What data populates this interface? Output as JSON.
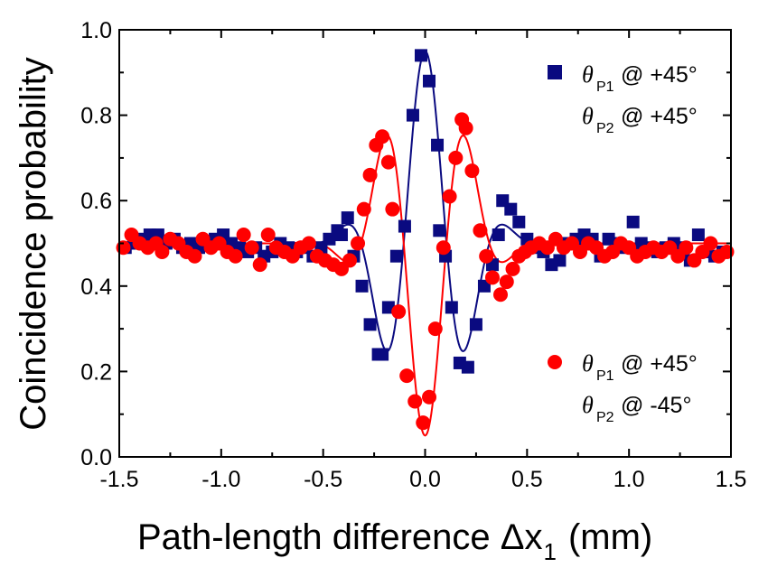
{
  "chart_data": {
    "type": "scatter",
    "title": "",
    "xlabel": "Path-length difference Δx",
    "xlabel_sub": "1",
    "xlabel_unit": "(mm)",
    "ylabel": "Coincidence probability",
    "xlim": [
      -1.5,
      1.5
    ],
    "ylim": [
      0.0,
      1.0
    ],
    "xticks": [
      "-1.5",
      "-1.0",
      "-0.5",
      "0.0",
      "0.5",
      "1.0",
      "1.5"
    ],
    "xtick_values": [
      -1.5,
      -1.0,
      -0.5,
      0.0,
      0.5,
      1.0,
      1.5
    ],
    "yticks": [
      "0.0",
      "0.2",
      "0.4",
      "0.6",
      "0.8",
      "1.0"
    ],
    "ytick_values": [
      0.0,
      0.2,
      0.4,
      0.6,
      0.8,
      1.0
    ],
    "grid": false,
    "legend_placement": "right",
    "series": [
      {
        "name": "θP1 @ +45°, θP2 @ +45°",
        "marker": "square",
        "color": "#0a0a80",
        "legend": {
          "line1_prefix": "θ",
          "line1_sub": "P1",
          "line1_suffix": "@ +45°",
          "line2_prefix": "θ",
          "line2_sub": "P2",
          "line2_suffix": "@ +45°"
        },
        "points": [
          [
            -1.47,
            0.49
          ],
          [
            -1.43,
            0.5
          ],
          [
            -1.39,
            0.51
          ],
          [
            -1.35,
            0.52
          ],
          [
            -1.31,
            0.52
          ],
          [
            -1.27,
            0.5
          ],
          [
            -1.23,
            0.51
          ],
          [
            -1.19,
            0.49
          ],
          [
            -1.15,
            0.5
          ],
          [
            -1.11,
            0.49
          ],
          [
            -1.07,
            0.5
          ],
          [
            -1.03,
            0.51
          ],
          [
            -0.99,
            0.52
          ],
          [
            -0.95,
            0.5
          ],
          [
            -0.91,
            0.49
          ],
          [
            -0.87,
            0.48
          ],
          [
            -0.83,
            0.49
          ],
          [
            -0.79,
            0.47
          ],
          [
            -0.75,
            0.48
          ],
          [
            -0.71,
            0.5
          ],
          [
            -0.67,
            0.49
          ],
          [
            -0.63,
            0.48
          ],
          [
            -0.59,
            0.49
          ],
          [
            -0.55,
            0.47
          ],
          [
            -0.51,
            0.49
          ],
          [
            -0.47,
            0.51
          ],
          [
            -0.43,
            0.53
          ],
          [
            -0.41,
            0.52
          ],
          [
            -0.38,
            0.56
          ],
          [
            -0.35,
            0.47
          ],
          [
            -0.31,
            0.4
          ],
          [
            -0.27,
            0.31
          ],
          [
            -0.23,
            0.24
          ],
          [
            -0.21,
            0.24
          ],
          [
            -0.18,
            0.35
          ],
          [
            -0.14,
            0.47
          ],
          [
            -0.1,
            0.54
          ],
          [
            -0.06,
            0.8
          ],
          [
            -0.02,
            0.94
          ],
          [
            0.02,
            0.88
          ],
          [
            0.06,
            0.73
          ],
          [
            0.07,
            0.53
          ],
          [
            0.1,
            0.47
          ],
          [
            0.13,
            0.35
          ],
          [
            0.17,
            0.22
          ],
          [
            0.21,
            0.21
          ],
          [
            0.25,
            0.31
          ],
          [
            0.29,
            0.4
          ],
          [
            0.33,
            0.45
          ],
          [
            0.36,
            0.52
          ],
          [
            0.38,
            0.6
          ],
          [
            0.42,
            0.58
          ],
          [
            0.46,
            0.55
          ],
          [
            0.5,
            0.51
          ],
          [
            0.54,
            0.49
          ],
          [
            0.58,
            0.48
          ],
          [
            0.62,
            0.45
          ],
          [
            0.66,
            0.46
          ],
          [
            0.7,
            0.5
          ],
          [
            0.74,
            0.51
          ],
          [
            0.78,
            0.52
          ],
          [
            0.82,
            0.51
          ],
          [
            0.86,
            0.47
          ],
          [
            0.9,
            0.51
          ],
          [
            0.94,
            0.5
          ],
          [
            0.98,
            0.49
          ],
          [
            1.02,
            0.55
          ],
          [
            1.06,
            0.5
          ],
          [
            1.1,
            0.49
          ],
          [
            1.14,
            0.48
          ],
          [
            1.18,
            0.49
          ],
          [
            1.22,
            0.5
          ],
          [
            1.26,
            0.49
          ],
          [
            1.3,
            0.46
          ],
          [
            1.34,
            0.52
          ],
          [
            1.38,
            0.48
          ],
          [
            1.42,
            0.47
          ],
          [
            1.46,
            0.48
          ]
        ]
      },
      {
        "name": "θP1 @ +45°, θP2 @ -45°",
        "marker": "circle",
        "color": "#ff0000",
        "legend": {
          "line1_prefix": "θ",
          "line1_sub": "P1",
          "line1_suffix": "@ +45°",
          "line2_prefix": "θ",
          "line2_sub": "P2",
          "line2_suffix": "@ -45°"
        },
        "points": [
          [
            -1.48,
            0.49
          ],
          [
            -1.44,
            0.52
          ],
          [
            -1.4,
            0.5
          ],
          [
            -1.36,
            0.49
          ],
          [
            -1.32,
            0.5
          ],
          [
            -1.29,
            0.48
          ],
          [
            -1.25,
            0.51
          ],
          [
            -1.21,
            0.5
          ],
          [
            -1.17,
            0.48
          ],
          [
            -1.13,
            0.47
          ],
          [
            -1.09,
            0.51
          ],
          [
            -1.05,
            0.49
          ],
          [
            -1.01,
            0.5
          ],
          [
            -0.97,
            0.48
          ],
          [
            -0.93,
            0.47
          ],
          [
            -0.89,
            0.52
          ],
          [
            -0.85,
            0.49
          ],
          [
            -0.81,
            0.45
          ],
          [
            -0.77,
            0.52
          ],
          [
            -0.73,
            0.49
          ],
          [
            -0.69,
            0.48
          ],
          [
            -0.65,
            0.47
          ],
          [
            -0.61,
            0.49
          ],
          [
            -0.57,
            0.5
          ],
          [
            -0.53,
            0.47
          ],
          [
            -0.49,
            0.46
          ],
          [
            -0.45,
            0.45
          ],
          [
            -0.41,
            0.44
          ],
          [
            -0.37,
            0.46
          ],
          [
            -0.33,
            0.5
          ],
          [
            -0.3,
            0.58
          ],
          [
            -0.27,
            0.66
          ],
          [
            -0.24,
            0.73
          ],
          [
            -0.21,
            0.75
          ],
          [
            -0.18,
            0.69
          ],
          [
            -0.16,
            0.58
          ],
          [
            -0.13,
            0.34
          ],
          [
            -0.09,
            0.19
          ],
          [
            -0.05,
            0.13
          ],
          [
            -0.01,
            0.08
          ],
          [
            0.02,
            0.14
          ],
          [
            0.05,
            0.3
          ],
          [
            0.09,
            0.49
          ],
          [
            0.12,
            0.61
          ],
          [
            0.15,
            0.7
          ],
          [
            0.18,
            0.79
          ],
          [
            0.2,
            0.77
          ],
          [
            0.23,
            0.67
          ],
          [
            0.27,
            0.53
          ],
          [
            0.3,
            0.47
          ],
          [
            0.33,
            0.42
          ],
          [
            0.37,
            0.38
          ],
          [
            0.4,
            0.41
          ],
          [
            0.43,
            0.44
          ],
          [
            0.46,
            0.47
          ],
          [
            0.49,
            0.48
          ],
          [
            0.52,
            0.49
          ],
          [
            0.56,
            0.5
          ],
          [
            0.6,
            0.49
          ],
          [
            0.64,
            0.51
          ],
          [
            0.68,
            0.49
          ],
          [
            0.72,
            0.5
          ],
          [
            0.76,
            0.48
          ],
          [
            0.8,
            0.5
          ],
          [
            0.84,
            0.49
          ],
          [
            0.88,
            0.47
          ],
          [
            0.92,
            0.48
          ],
          [
            0.96,
            0.5
          ],
          [
            1.0,
            0.49
          ],
          [
            1.04,
            0.47
          ],
          [
            1.08,
            0.48
          ],
          [
            1.12,
            0.49
          ],
          [
            1.16,
            0.48
          ],
          [
            1.2,
            0.49
          ],
          [
            1.24,
            0.47
          ],
          [
            1.28,
            0.49
          ],
          [
            1.32,
            0.46
          ],
          [
            1.36,
            0.48
          ],
          [
            1.4,
            0.5
          ],
          [
            1.44,
            0.47
          ],
          [
            1.48,
            0.48
          ]
        ]
      }
    ],
    "fits": [
      {
        "name": "blue-fit",
        "color": "#0a0a80",
        "model": "0.5 + 0.45*exp(-(x/0.26)^2)*cos(2*pi*x/0.42)"
      },
      {
        "name": "red-fit",
        "color": "#ff0000",
        "model": "0.5 - 0.45*exp(-(x/0.26)^2)*cos(2*pi*x/0.42)"
      }
    ]
  }
}
